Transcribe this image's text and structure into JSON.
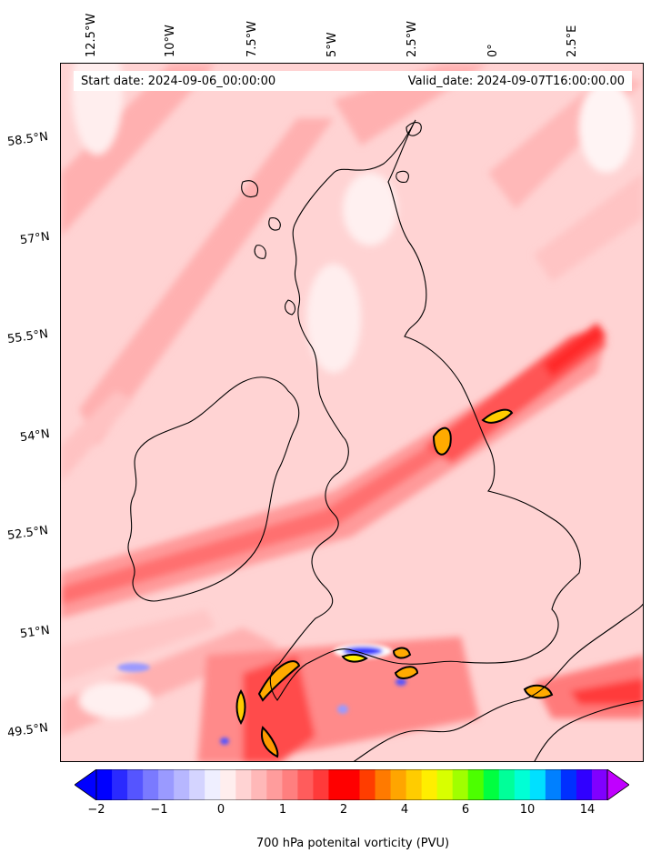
{
  "header": {
    "start_date": "Start date: 2024-09-06_00:00:00",
    "valid_date": "Valid_date: 2024-09-07T16:00:00.00"
  },
  "axes": {
    "longitude_labels": [
      "12.5°W",
      "10°W",
      "7.5°W",
      "5°W",
      "2.5°W",
      "0°",
      "2.5°E"
    ],
    "latitude_labels": [
      "58.5°N",
      "57°N",
      "55.5°N",
      "54°N",
      "52.5°N",
      "51°N",
      "49.5°N"
    ]
  },
  "colorbar": {
    "label": "700 hPa potenital vorticity (PVU)",
    "ticks": [
      "−2",
      "−1",
      "0",
      "1",
      "2",
      "4",
      "6",
      "10",
      "14"
    ],
    "colors": [
      "#0000ff",
      "#2a2aff",
      "#5555ff",
      "#7a7aff",
      "#9a9aff",
      "#b7b7ff",
      "#d4d4ff",
      "#efefff",
      "#ffeeee",
      "#ffd3d3",
      "#ffb8b8",
      "#ff9c9c",
      "#ff7f7f",
      "#ff5c5c",
      "#ff3a3a",
      "#ff0000",
      "#ff0000",
      "#ff3d00",
      "#ff7a00",
      "#ffa500",
      "#ffcc00",
      "#ffee00",
      "#d8ff00",
      "#a0ff00",
      "#4cff00",
      "#00ff40",
      "#00ff99",
      "#00ffd5",
      "#00e0ff",
      "#0080ff",
      "#0030ff",
      "#3000ff",
      "#8000ff"
    ],
    "under_color": "#0000ff",
    "over_color": "#c000ff"
  },
  "map": {
    "background_color": "#ffd3d3",
    "coastline_color": "#000000"
  }
}
